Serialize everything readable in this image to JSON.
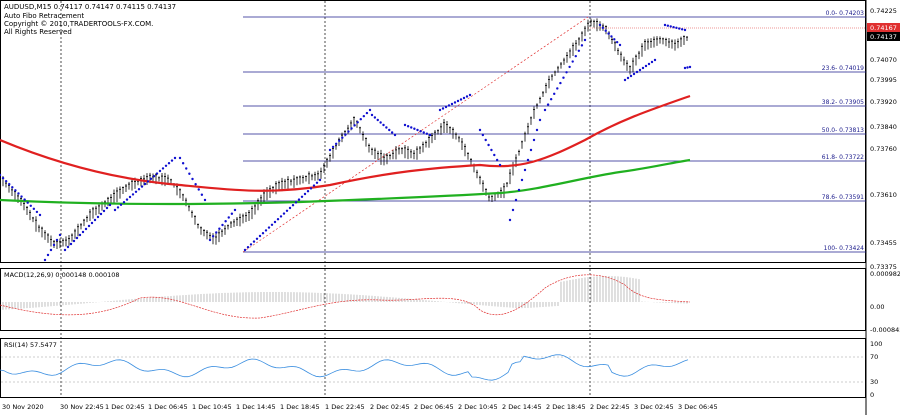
{
  "window": {
    "symbol_line": "AUDUSD,M15  0.74117 0.74147 0.74115 0.74137",
    "indicator_name": "Auto Fibo Retracement",
    "copyright": "Copyright © 2010,TRADERTOOLS-FX.COM.",
    "rights": "All Rights Reserved"
  },
  "price_axis": {
    "ticks": [
      "0.74225",
      "0.74070",
      "0.73920",
      "0.73760",
      "0.73610",
      "0.73455",
      "0.73375"
    ],
    "extra_ticks": [
      "0.73995",
      "0.73840",
      "0.73375"
    ],
    "current_price": "0.74137",
    "ask_price": "0.74167",
    "current_color": "#000000",
    "ask_color": "#e03030"
  },
  "fibo": {
    "color": "#1c1c8c",
    "levels": [
      {
        "label": "0.0- 0.74203"
      },
      {
        "label": "23.6- 0.74019"
      },
      {
        "label": "38.2- 0.73905"
      },
      {
        "label": "50.0- 0.73813"
      },
      {
        "label": "61.8- 0.73722"
      },
      {
        "label": "78.6- 0.73591"
      },
      {
        "label": "100- 0.73424"
      }
    ]
  },
  "macd": {
    "label": "MACD(12,26,9) 0.000148 0.000108",
    "ticks": [
      "0.000982",
      "0.00",
      "-0.000845"
    ]
  },
  "rsi": {
    "label": "RSI(14) 57.5477",
    "ticks": [
      "100",
      "70",
      "30",
      "0"
    ]
  },
  "time_axis": {
    "labels": [
      "30 Nov 2020",
      "30 Nov 22:45",
      "1 Dec 02:45",
      "1 Dec 06:45",
      "1 Dec 10:45",
      "1 Dec 14:45",
      "1 Dec 18:45",
      "1 Dec 22:45",
      "2 Dec 02:45",
      "2 Dec 06:45",
      "2 Dec 10:45",
      "2 Dec 14:45",
      "2 Dec 18:45",
      "2 Dec 22:45",
      "3 Dec 02:45",
      "3 Dec 06:45"
    ]
  },
  "colors": {
    "ma_fast": "#e02020",
    "ma_slow": "#20b020",
    "psar": "#1010d0",
    "candles": "#000000",
    "rsi_line": "#3a8ee0",
    "macd_signal": "#e03030",
    "macd_hist": "#b0b0b0"
  }
}
